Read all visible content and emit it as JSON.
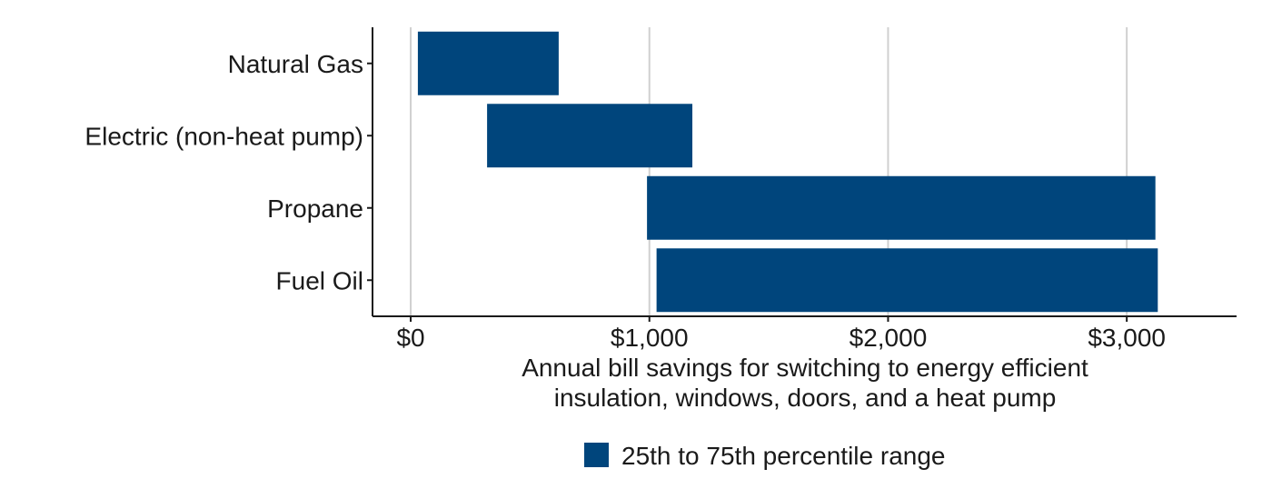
{
  "chart_data": {
    "type": "bar",
    "orientation": "horizontal",
    "subtype": "floating-range",
    "categories": [
      "Natural Gas",
      "Electric (non-heat pump)",
      "Propane",
      "Fuel Oil"
    ],
    "series": [
      {
        "name": "25th to 75th percentile range",
        "color": "#00457c",
        "ranges": [
          [
            30,
            620
          ],
          [
            320,
            1180
          ],
          [
            990,
            3120
          ],
          [
            1030,
            3130
          ]
        ]
      }
    ],
    "xlabel": "Annual bill savings for switching to energy efficient insulation, windows, doors, and a heat pump",
    "xlabel_lines": [
      "Annual bill savings for switching to energy efficient",
      "insulation, windows, doors, and a heat pump"
    ],
    "ylabel": "",
    "xlim": [
      -160,
      3460
    ],
    "xticks": [
      0,
      1000,
      2000,
      3000
    ],
    "xtick_labels": [
      "$0",
      "$1,000",
      "$2,000",
      "$3,000"
    ],
    "grid": "vertical-major",
    "legend_position": "bottom"
  }
}
